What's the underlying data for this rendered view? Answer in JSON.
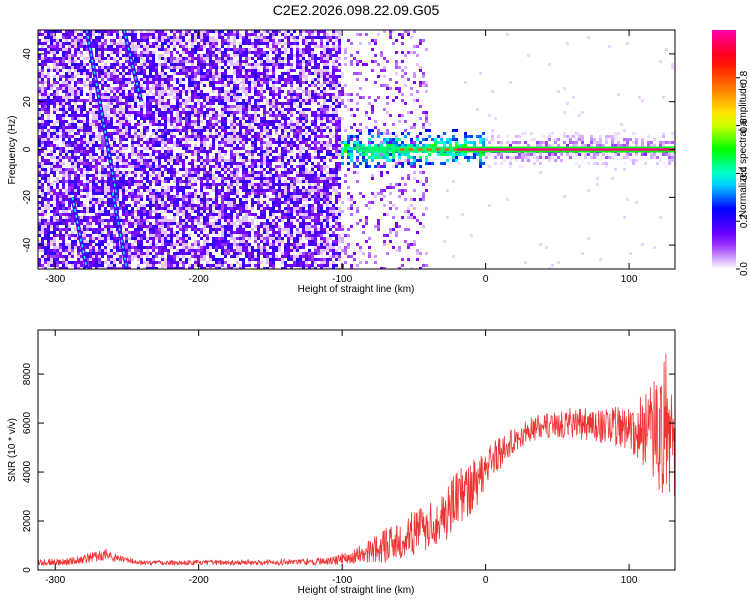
{
  "figure": {
    "title": "C2E2.2026.098.22.09.G05"
  },
  "chart_data": [
    {
      "type": "heatmap",
      "name": "spectrogram",
      "xlabel": "Height of straight line (km)",
      "ylabel": "Frequency (Hz)",
      "xlim": [
        -312,
        132
      ],
      "ylim": [
        -50,
        50
      ],
      "xticks": [
        -300,
        -200,
        -100,
        0,
        100
      ],
      "yticks": [
        -40,
        -20,
        0,
        20,
        40
      ],
      "grid": false,
      "colorbar": {
        "label": "Normalized spectral amplitude",
        "range": [
          0,
          1
        ],
        "ticks": [
          0.0,
          0.2,
          0.4,
          0.6,
          0.8
        ],
        "colormap": [
          "#ffffff",
          "#8000ff",
          "#0000ff",
          "#00ffff",
          "#00ff00",
          "#ffff00",
          "#ff8000",
          "#ff0000",
          "#ff00aa"
        ]
      },
      "features": {
        "noise_region_x": [
          -312,
          -100
        ],
        "transition_region_x": [
          -100,
          -40
        ],
        "carrier_frequency_hz": 0,
        "carrier_strong_from_x": -20,
        "diagonal_tracks": [
          {
            "x_start": -278,
            "f_start": 50,
            "x_end": -257,
            "f_end": -20
          },
          {
            "x_start": -252,
            "f_start": 50,
            "x_end": -240,
            "f_end": 20
          },
          {
            "x_start": -260,
            "f_start": -18,
            "x_end": -250,
            "f_end": -50
          },
          {
            "x_start": -288,
            "f_start": -20,
            "x_end": -278,
            "f_end": -50
          }
        ]
      }
    },
    {
      "type": "line",
      "name": "snr",
      "xlabel": "Height of straight line (km)",
      "ylabel": "SNR (10 * v/v)",
      "xlim": [
        -312,
        132
      ],
      "ylim": [
        0,
        9800
      ],
      "xticks": [
        -300,
        -200,
        -100,
        0,
        100
      ],
      "yticks": [
        0,
        2000,
        4000,
        6000,
        8000
      ],
      "grid": false,
      "color": "#ee3333",
      "envelope": {
        "x": [
          -312,
          -290,
          -275,
          -265,
          -255,
          -240,
          -200,
          -150,
          -110,
          -95,
          -80,
          -70,
          -60,
          -50,
          -40,
          -30,
          -20,
          -10,
          0,
          10,
          20,
          30,
          40,
          60,
          80,
          100,
          110,
          120,
          125,
          132
        ],
        "mean": [
          300,
          350,
          500,
          650,
          450,
          300,
          300,
          320,
          350,
          500,
          800,
          1000,
          1200,
          1500,
          1800,
          2200,
          2800,
          3400,
          4200,
          4800,
          5300,
          5700,
          5900,
          6000,
          5900,
          5800,
          5700,
          5500,
          6000,
          5500
        ],
        "amp": [
          120,
          150,
          200,
          250,
          150,
          100,
          100,
          120,
          150,
          250,
          500,
          700,
          800,
          900,
          1000,
          1100,
          1200,
          1200,
          900,
          700,
          500,
          500,
          500,
          600,
          700,
          900,
          1500,
          2500,
          3000,
          2500
        ]
      }
    }
  ]
}
